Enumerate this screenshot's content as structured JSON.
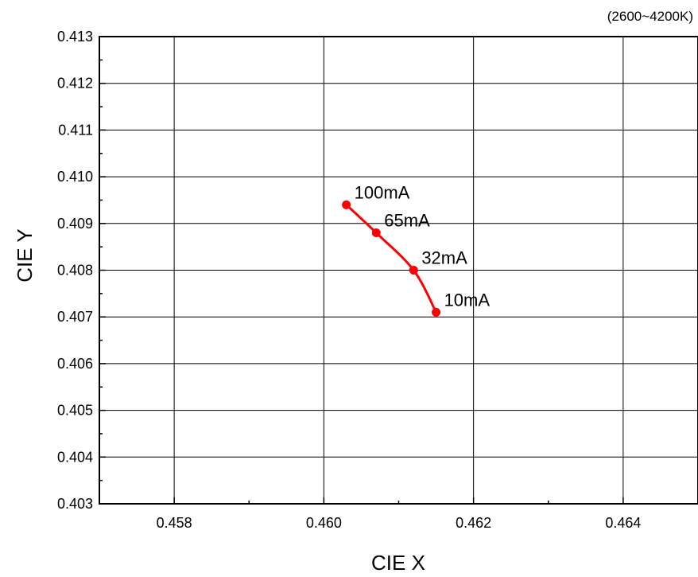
{
  "chart_data": {
    "type": "line",
    "title": "",
    "annotation": "(2600~4200K)",
    "xlabel": "CIE X",
    "ylabel": "CIE Y",
    "xlim": [
      0.457,
      0.465
    ],
    "ylim": [
      0.403,
      0.413
    ],
    "grid": true,
    "xticks": [
      "0.458",
      "0.460",
      "0.462",
      "0.464"
    ],
    "yticks": [
      "0.403",
      "0.404",
      "0.405",
      "0.406",
      "0.407",
      "0.408",
      "0.409",
      "0.410",
      "0.411",
      "0.412",
      "0.413"
    ],
    "series": [
      {
        "color": "#ff0000",
        "points": [
          {
            "x": 0.4603,
            "y": 0.4094,
            "label": "100mA"
          },
          {
            "x": 0.4607,
            "y": 0.4088,
            "label": "65mA"
          },
          {
            "x": 0.4612,
            "y": 0.408,
            "label": "32mA"
          },
          {
            "x": 0.4615,
            "y": 0.4071,
            "label": "10mA"
          }
        ]
      }
    ]
  }
}
